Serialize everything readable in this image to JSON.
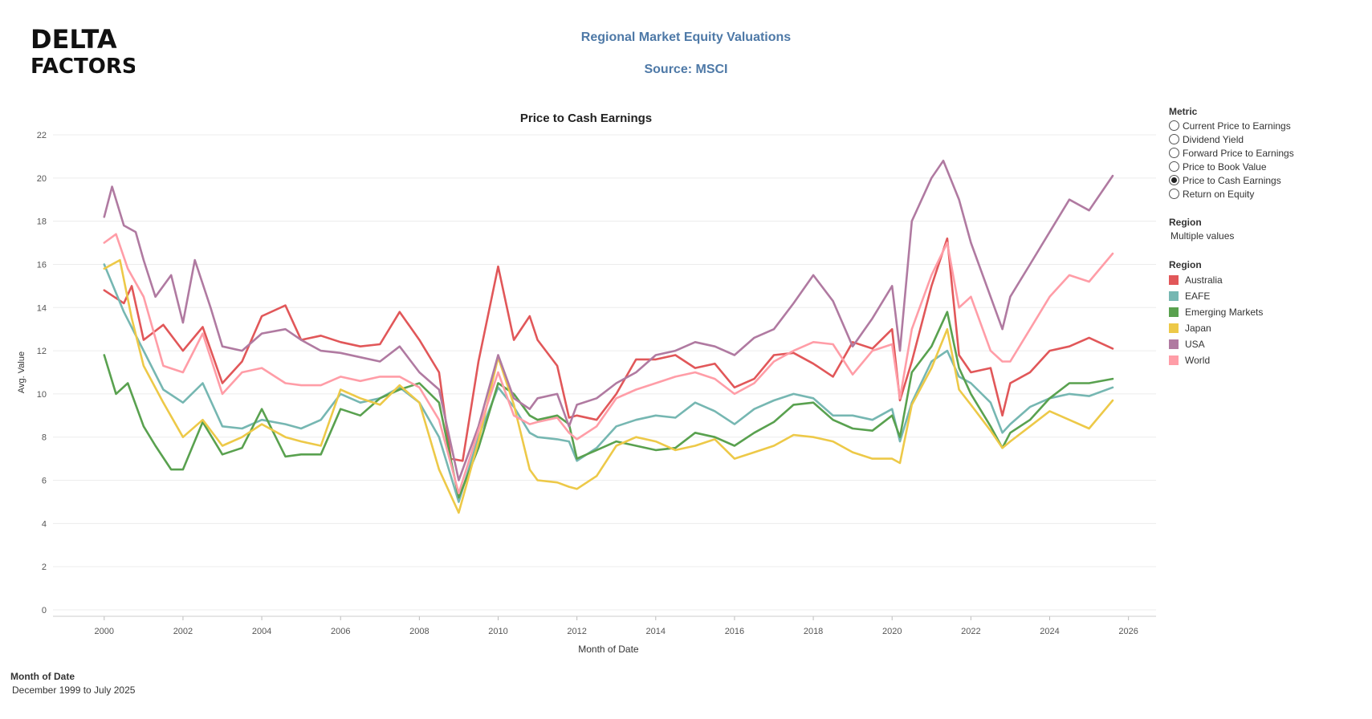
{
  "logo": {
    "line1": "DELTA",
    "line2": "FACTORS"
  },
  "header": {
    "title": "Regional Market Equity Valuations",
    "source": "Source: MSCI"
  },
  "metric_panel": {
    "title": "Metric",
    "options": [
      {
        "label": "Current Price to Earnings",
        "selected": false
      },
      {
        "label": "Dividend Yield",
        "selected": false
      },
      {
        "label": "Forward Price to Earnings",
        "selected": false
      },
      {
        "label": "Price to Book Value",
        "selected": false
      },
      {
        "label": "Price to Cash Earnings",
        "selected": true
      },
      {
        "label": "Return on Equity",
        "selected": false
      }
    ]
  },
  "region_filter": {
    "title": "Region",
    "value": "Multiple values"
  },
  "legend": {
    "title": "Region",
    "items": [
      {
        "label": "Australia",
        "color": "#e15759"
      },
      {
        "label": "EAFE",
        "color": "#76b7b2"
      },
      {
        "label": "Emerging Markets",
        "color": "#59a14f"
      },
      {
        "label": "Japan",
        "color": "#edc948"
      },
      {
        "label": "USA",
        "color": "#b07aa1"
      },
      {
        "label": "World",
        "color": "#ff9da7"
      }
    ]
  },
  "footer": {
    "label": "Month of Date",
    "value": "December 1999 to July 2025"
  },
  "chart_data": {
    "type": "line",
    "title": "Price to Cash Earnings",
    "xlabel": "Month of Date",
    "ylabel": "Avg. Value",
    "xlim": [
      1998.7,
      2026.7
    ],
    "ylim": [
      0,
      22
    ],
    "xticks": [
      "2000",
      "2002",
      "2004",
      "2006",
      "2008",
      "2010",
      "2012",
      "2014",
      "2016",
      "2018",
      "2020",
      "2022",
      "2024",
      "2026"
    ],
    "yticks": [
      "0",
      "2",
      "4",
      "6",
      "8",
      "10",
      "12",
      "14",
      "16",
      "18",
      "20",
      "22"
    ],
    "grid": true,
    "series": [
      {
        "name": "Australia",
        "color": "#e15759",
        "x": [
          2000,
          2000.5,
          2000.7,
          2001,
          2001.5,
          2002,
          2002.5,
          2003,
          2003.5,
          2004,
          2004.6,
          2005,
          2005.5,
          2006,
          2006.5,
          2007,
          2007.5,
          2008,
          2008.5,
          2008.8,
          2009.1,
          2009.5,
          2010,
          2010.4,
          2010.8,
          2011,
          2011.5,
          2011.8,
          2012,
          2012.5,
          2013,
          2013.5,
          2014,
          2014.5,
          2015,
          2015.5,
          2016,
          2016.5,
          2017,
          2017.5,
          2018,
          2018.5,
          2019,
          2019.5,
          2020,
          2020.2,
          2020.5,
          2021,
          2021.4,
          2021.7,
          2022,
          2022.5,
          2022.8,
          2023,
          2023.5,
          2024,
          2024.5,
          2025,
          2025.6
        ],
        "values": [
          14.8,
          14.2,
          15.0,
          12.5,
          13.2,
          12.0,
          13.1,
          10.5,
          11.5,
          13.6,
          14.1,
          12.5,
          12.7,
          12.4,
          12.2,
          12.3,
          13.8,
          12.5,
          11.0,
          7.0,
          6.9,
          11.5,
          15.9,
          12.5,
          13.6,
          12.5,
          11.3,
          8.9,
          9.0,
          8.8,
          10.0,
          11.6,
          11.6,
          11.8,
          11.2,
          11.4,
          10.3,
          10.7,
          11.8,
          11.9,
          11.4,
          10.8,
          12.4,
          12.1,
          13.0,
          9.7,
          11.5,
          15.0,
          17.2,
          11.8,
          11.0,
          11.2,
          9.0,
          10.5,
          11.0,
          12.0,
          12.2,
          12.6,
          12.1
        ]
      },
      {
        "name": "EAFE",
        "color": "#76b7b2",
        "x": [
          2000,
          2000.5,
          2001,
          2001.5,
          2002,
          2002.5,
          2003,
          2003.5,
          2004,
          2004.6,
          2005,
          2005.5,
          2006,
          2006.5,
          2007,
          2007.5,
          2008,
          2008.5,
          2009,
          2009.5,
          2010,
          2010.4,
          2010.8,
          2011,
          2011.5,
          2011.8,
          2012,
          2012.5,
          2013,
          2013.5,
          2014,
          2014.5,
          2015,
          2015.5,
          2016,
          2016.5,
          2017,
          2017.5,
          2018,
          2018.5,
          2019,
          2019.5,
          2020,
          2020.2,
          2020.5,
          2021,
          2021.4,
          2021.7,
          2022,
          2022.5,
          2022.8,
          2023,
          2023.5,
          2024,
          2024.5,
          2025,
          2025.6
        ],
        "values": [
          16.0,
          13.8,
          12.0,
          10.2,
          9.6,
          10.5,
          8.5,
          8.4,
          8.8,
          8.6,
          8.4,
          8.8,
          10.0,
          9.6,
          9.8,
          10.3,
          9.6,
          8.0,
          5.0,
          8.0,
          10.3,
          9.4,
          8.2,
          8.0,
          7.9,
          7.8,
          6.9,
          7.5,
          8.5,
          8.8,
          9.0,
          8.9,
          9.6,
          9.2,
          8.6,
          9.3,
          9.7,
          10.0,
          9.8,
          9.0,
          9.0,
          8.8,
          9.3,
          7.8,
          9.6,
          11.5,
          12.0,
          10.8,
          10.5,
          9.6,
          8.2,
          8.6,
          9.4,
          9.8,
          10.0,
          9.9,
          10.3
        ]
      },
      {
        "name": "Emerging Markets",
        "color": "#59a14f",
        "x": [
          2000,
          2000.3,
          2000.6,
          2001,
          2001.3,
          2001.7,
          2002,
          2002.5,
          2003,
          2003.5,
          2004,
          2004.6,
          2005,
          2005.5,
          2006,
          2006.5,
          2007,
          2007.5,
          2008,
          2008.5,
          2009,
          2009.5,
          2010,
          2010.4,
          2010.8,
          2011,
          2011.5,
          2011.8,
          2012,
          2012.5,
          2013,
          2013.5,
          2014,
          2014.5,
          2015,
          2015.5,
          2016,
          2016.5,
          2017,
          2017.5,
          2018,
          2018.5,
          2019,
          2019.5,
          2020,
          2020.2,
          2020.5,
          2021,
          2021.4,
          2021.7,
          2022,
          2022.5,
          2022.8,
          2023,
          2023.5,
          2024,
          2024.5,
          2025,
          2025.6
        ],
        "values": [
          11.8,
          10.0,
          10.5,
          8.5,
          7.6,
          6.5,
          6.5,
          8.7,
          7.2,
          7.5,
          9.3,
          7.1,
          7.2,
          7.2,
          9.3,
          9.0,
          9.8,
          10.2,
          10.5,
          9.6,
          5.2,
          7.5,
          10.5,
          10.0,
          9.0,
          8.8,
          9.0,
          8.6,
          7.0,
          7.4,
          7.8,
          7.6,
          7.4,
          7.5,
          8.2,
          8.0,
          7.6,
          8.2,
          8.7,
          9.5,
          9.6,
          8.8,
          8.4,
          8.3,
          9.0,
          8.0,
          11.0,
          12.2,
          13.8,
          11.2,
          10.0,
          8.5,
          7.5,
          8.2,
          8.8,
          9.8,
          10.5,
          10.5,
          10.7
        ]
      },
      {
        "name": "Japan",
        "color": "#edc948",
        "x": [
          2000,
          2000.4,
          2000.7,
          2001,
          2001.5,
          2002,
          2002.5,
          2003,
          2003.5,
          2004,
          2004.6,
          2005,
          2005.5,
          2006,
          2006.5,
          2007,
          2007.5,
          2008,
          2008.5,
          2009,
          2009.5,
          2010,
          2010.4,
          2010.8,
          2011,
          2011.5,
          2011.8,
          2012,
          2012.5,
          2013,
          2013.5,
          2014,
          2014.5,
          2015,
          2015.5,
          2016,
          2016.5,
          2017,
          2017.5,
          2018,
          2018.5,
          2019,
          2019.5,
          2020,
          2020.2,
          2020.5,
          2021,
          2021.4,
          2021.7,
          2022,
          2022.5,
          2022.8,
          2023,
          2023.5,
          2024,
          2024.5,
          2025,
          2025.6
        ],
        "values": [
          15.8,
          16.2,
          13.5,
          11.3,
          9.6,
          8.0,
          8.8,
          7.6,
          8.0,
          8.6,
          8.0,
          7.8,
          7.6,
          10.2,
          9.8,
          9.5,
          10.4,
          9.6,
          6.5,
          4.5,
          7.8,
          11.7,
          9.5,
          6.5,
          6.0,
          5.9,
          5.7,
          5.6,
          6.2,
          7.6,
          8.0,
          7.8,
          7.4,
          7.6,
          7.9,
          7.0,
          7.3,
          7.6,
          8.1,
          8.0,
          7.8,
          7.3,
          7.0,
          7.0,
          6.8,
          9.5,
          11.2,
          13.0,
          10.2,
          9.5,
          8.3,
          7.5,
          7.8,
          8.5,
          9.2,
          8.8,
          8.4,
          9.7
        ]
      },
      {
        "name": "USA",
        "color": "#b07aa1",
        "x": [
          2000,
          2000.2,
          2000.5,
          2000.8,
          2001,
          2001.3,
          2001.7,
          2002,
          2002.3,
          2002.7,
          2003,
          2003.5,
          2004,
          2004.6,
          2005,
          2005.5,
          2006,
          2006.5,
          2007,
          2007.5,
          2008,
          2008.5,
          2009,
          2009.5,
          2010,
          2010.4,
          2010.8,
          2011,
          2011.5,
          2011.8,
          2012,
          2012.5,
          2013,
          2013.5,
          2014,
          2014.5,
          2015,
          2015.5,
          2016,
          2016.5,
          2017,
          2017.5,
          2018,
          2018.5,
          2019,
          2019.5,
          2020,
          2020.2,
          2020.5,
          2021,
          2021.3,
          2021.7,
          2022,
          2022.5,
          2022.8,
          2023,
          2023.5,
          2024,
          2024.5,
          2025,
          2025.6
        ],
        "values": [
          18.2,
          19.6,
          17.8,
          17.5,
          16.2,
          14.5,
          15.5,
          13.3,
          16.2,
          14.0,
          12.2,
          12.0,
          12.8,
          13.0,
          12.5,
          12.0,
          11.9,
          11.7,
          11.5,
          12.2,
          11.0,
          10.2,
          6.0,
          8.5,
          11.8,
          9.8,
          9.3,
          9.8,
          10.0,
          8.5,
          9.5,
          9.8,
          10.5,
          11.0,
          11.8,
          12.0,
          12.4,
          12.2,
          11.8,
          12.6,
          13.0,
          14.2,
          15.5,
          14.3,
          12.2,
          13.5,
          15.0,
          12.0,
          18.0,
          20.0,
          20.8,
          19.0,
          17.0,
          14.5,
          13.0,
          14.5,
          16.0,
          17.5,
          19.0,
          18.5,
          20.1
        ]
      },
      {
        "name": "World",
        "color": "#ff9da7",
        "x": [
          2000,
          2000.3,
          2000.6,
          2001,
          2001.5,
          2002,
          2002.5,
          2003,
          2003.5,
          2004,
          2004.6,
          2005,
          2005.5,
          2006,
          2006.5,
          2007,
          2007.5,
          2008,
          2008.5,
          2009,
          2009.5,
          2010,
          2010.4,
          2010.8,
          2011,
          2011.5,
          2011.8,
          2012,
          2012.5,
          2013,
          2013.5,
          2014,
          2014.5,
          2015,
          2015.5,
          2016,
          2016.5,
          2017,
          2017.5,
          2018,
          2018.5,
          2019,
          2019.5,
          2020,
          2020.2,
          2020.5,
          2021,
          2021.4,
          2021.7,
          2022,
          2022.5,
          2022.8,
          2023,
          2023.5,
          2024,
          2024.5,
          2025,
          2025.6
        ],
        "values": [
          17.0,
          17.4,
          15.8,
          14.5,
          11.3,
          11.0,
          12.8,
          10.0,
          11.0,
          11.2,
          10.5,
          10.4,
          10.4,
          10.8,
          10.6,
          10.8,
          10.8,
          10.3,
          8.8,
          5.4,
          8.3,
          11.0,
          9.0,
          8.6,
          8.7,
          8.9,
          8.2,
          7.9,
          8.5,
          9.8,
          10.2,
          10.5,
          10.8,
          11.0,
          10.7,
          10.0,
          10.5,
          11.5,
          12.0,
          12.4,
          12.3,
          10.9,
          12.0,
          12.3,
          9.8,
          13.0,
          15.5,
          17.0,
          14.0,
          14.5,
          12.0,
          11.5,
          11.5,
          13.0,
          14.5,
          15.5,
          15.2,
          16.5
        ]
      }
    ]
  }
}
